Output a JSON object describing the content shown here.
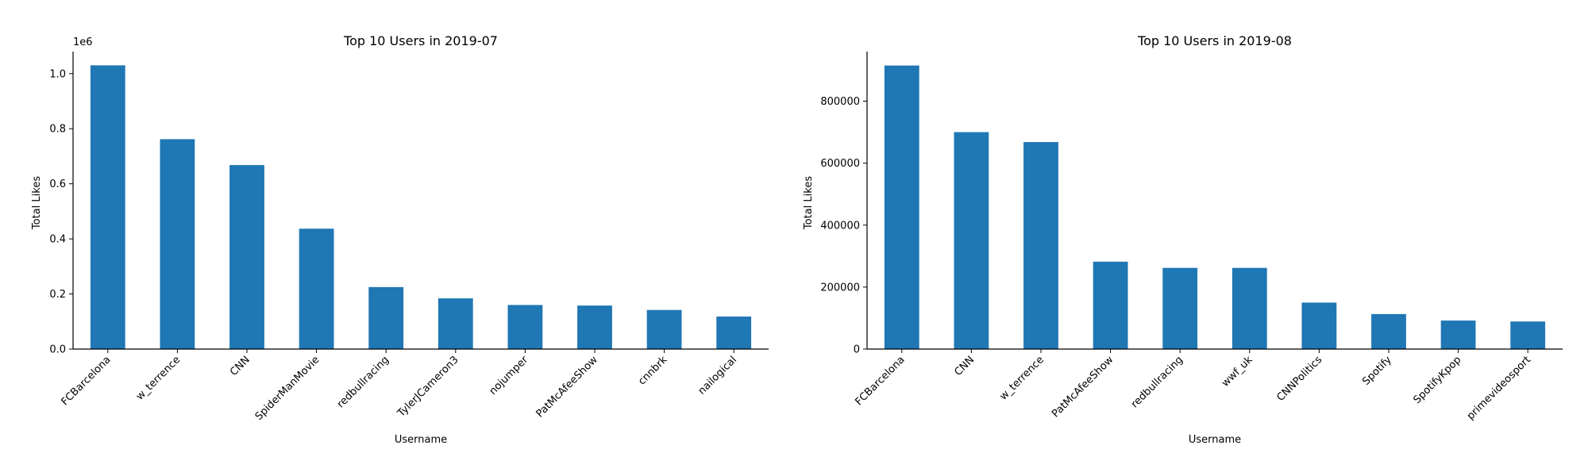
{
  "figure": {
    "bar_color": "#1f77b4",
    "axis_color": "#000000"
  },
  "chart_data": [
    {
      "type": "bar",
      "title": "Top 10 Users in 2019-07",
      "xlabel": "Username",
      "ylabel": "Total Likes",
      "categories": [
        "FCBarcelona",
        "w_terrence",
        "CNN",
        "SpiderManMovie",
        "redbullracing",
        "TylerJCameron3",
        "nojumper",
        "PatMcAfeeShow",
        "cnnbrk",
        "nailogical"
      ],
      "values": [
        1030000,
        762000,
        668000,
        437000,
        225000,
        184000,
        160000,
        158000,
        142000,
        118000
      ],
      "ylim": [
        0,
        1080000
      ],
      "yticks": [
        0,
        200000,
        400000,
        600000,
        800000,
        1000000
      ],
      "ytick_labels": [
        "0.0",
        "0.2",
        "0.4",
        "0.6",
        "0.8",
        "1.0"
      ],
      "offset_label": "1e6",
      "grid": false
    },
    {
      "type": "bar",
      "title": "Top 10 Users in 2019-08",
      "xlabel": "Username",
      "ylabel": "Total Likes",
      "categories": [
        "FCBarcelona",
        "CNN",
        "w_terrence",
        "PatMcAfeeShow",
        "redbullracing",
        "wwf_uk",
        "CNNPolitics",
        "Spotify",
        "SpotifyKpop",
        "primevideosport"
      ],
      "values": [
        915000,
        700000,
        668000,
        282000,
        262000,
        262000,
        150000,
        113000,
        92000,
        89000
      ],
      "ylim": [
        0,
        960000
      ],
      "yticks": [
        0,
        200000,
        400000,
        600000,
        800000
      ],
      "ytick_labels": [
        "0",
        "200000",
        "400000",
        "600000",
        "800000"
      ],
      "offset_label": "",
      "grid": false
    }
  ]
}
